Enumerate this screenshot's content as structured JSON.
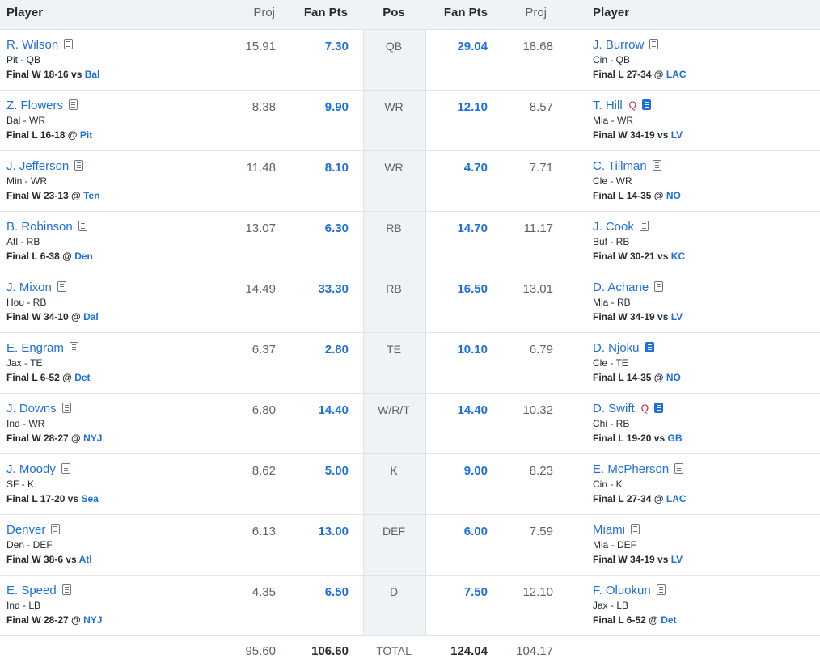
{
  "header": {
    "player_left": "Player",
    "proj_left": "Proj",
    "fanpts_left": "Fan Pts",
    "pos": "Pos",
    "fanpts_right": "Fan Pts",
    "proj_right": "Proj",
    "player_right": "Player"
  },
  "rows": [
    {
      "pos": "QB",
      "left": {
        "name": "R. Wilson",
        "team": "Pit - QB",
        "result": "Final W 18-16 vs",
        "opp": "Bal",
        "proj": "15.91",
        "pts": "7.30"
      },
      "right": {
        "name": "J. Burrow",
        "team": "Cin - QB",
        "result": "Final L 27-34 @",
        "opp": "LAC",
        "proj": "18.68",
        "pts": "29.04"
      }
    },
    {
      "pos": "WR",
      "left": {
        "name": "Z. Flowers",
        "team": "Bal - WR",
        "result": "Final L 16-18 @",
        "opp": "Pit",
        "proj": "8.38",
        "pts": "9.90"
      },
      "right": {
        "name": "T. Hill",
        "status": "Q",
        "team": "Mia - WR",
        "result": "Final W 34-19 vs",
        "opp": "LV",
        "proj": "8.57",
        "pts": "12.10"
      }
    },
    {
      "pos": "WR",
      "left": {
        "name": "J. Jefferson",
        "team": "Min - WR",
        "result": "Final W 23-13 @",
        "opp": "Ten",
        "proj": "11.48",
        "pts": "8.10"
      },
      "right": {
        "name": "C. Tillman",
        "team": "Cle - WR",
        "result": "Final L 14-35 @",
        "opp": "NO",
        "proj": "7.71",
        "pts": "4.70"
      }
    },
    {
      "pos": "RB",
      "left": {
        "name": "B. Robinson",
        "team": "Atl - RB",
        "result": "Final L 6-38 @",
        "opp": "Den",
        "proj": "13.07",
        "pts": "6.30"
      },
      "right": {
        "name": "J. Cook",
        "team": "Buf - RB",
        "result": "Final W 30-21 vs",
        "opp": "KC",
        "proj": "11.17",
        "pts": "14.70"
      }
    },
    {
      "pos": "RB",
      "left": {
        "name": "J. Mixon",
        "team": "Hou - RB",
        "result": "Final W 34-10 @",
        "opp": "Dal",
        "proj": "14.49",
        "pts": "33.30"
      },
      "right": {
        "name": "D. Achane",
        "team": "Mia - RB",
        "result": "Final W 34-19 vs",
        "opp": "LV",
        "proj": "13.01",
        "pts": "16.50"
      }
    },
    {
      "pos": "TE",
      "left": {
        "name": "E. Engram",
        "team": "Jax - TE",
        "result": "Final L 6-52 @",
        "opp": "Det",
        "proj": "6.37",
        "pts": "2.80"
      },
      "right": {
        "name": "D. Njoku",
        "team": "Cle - TE",
        "result": "Final L 14-35 @",
        "opp": "NO",
        "proj": "6.79",
        "pts": "10.10"
      }
    },
    {
      "pos": "W/R/T",
      "left": {
        "name": "J. Downs",
        "team": "Ind - WR",
        "result": "Final W 28-27 @",
        "opp": "NYJ",
        "proj": "6.80",
        "pts": "14.40"
      },
      "right": {
        "name": "D. Swift",
        "status": "Q",
        "team": "Chi - RB",
        "result": "Final L 19-20 vs",
        "opp": "GB",
        "proj": "10.32",
        "pts": "14.40"
      }
    },
    {
      "pos": "K",
      "left": {
        "name": "J. Moody",
        "team": "SF - K",
        "result": "Final L 17-20 vs",
        "opp": "Sea",
        "proj": "8.62",
        "pts": "5.00"
      },
      "right": {
        "name": "E. McPherson",
        "team": "Cin - K",
        "result": "Final L 27-34 @",
        "opp": "LAC",
        "proj": "8.23",
        "pts": "9.00"
      }
    },
    {
      "pos": "DEF",
      "left": {
        "name": "Denver",
        "team": "Den - DEF",
        "result": "Final W 38-6 vs",
        "opp": "Atl",
        "proj": "6.13",
        "pts": "13.00"
      },
      "right": {
        "name": "Miami",
        "team": "Mia - DEF",
        "result": "Final W 34-19 vs",
        "opp": "LV",
        "proj": "7.59",
        "pts": "6.00"
      }
    },
    {
      "pos": "D",
      "left": {
        "name": "E. Speed",
        "team": "Ind - LB",
        "result": "Final W 28-27 @",
        "opp": "NYJ",
        "proj": "4.35",
        "pts": "6.50"
      },
      "right": {
        "name": "F. Oluokun",
        "team": "Jax - LB",
        "result": "Final L 6-52 @",
        "opp": "Det",
        "proj": "12.10",
        "pts": "7.50"
      }
    }
  ],
  "totals": {
    "proj_left": "95.60",
    "pts_left": "106.60",
    "label": "TOTAL",
    "pts_right": "124.04",
    "proj_right": "104.17"
  },
  "colors": {
    "link": "#1d6ede",
    "status_q": "#c3193a",
    "header_bg": "#f0f3f5"
  },
  "icons": {
    "note": "player-note-icon",
    "note_new": "player-note-new-icon"
  }
}
